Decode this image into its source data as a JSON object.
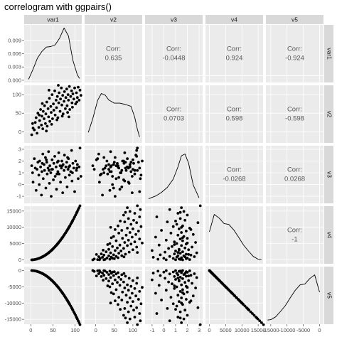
{
  "title": "correlogram with ggpairs()",
  "colors": {
    "panel_bg": "#ebebeb",
    "grid": "#ffffff",
    "strip_bg": "#d9d9d9",
    "ink": "#000000",
    "corr_text": "#595959"
  },
  "chart_data": {
    "type": "scatter-matrix",
    "variables": [
      "var1",
      "v2",
      "v3",
      "v4",
      "v5"
    ],
    "ranges": {
      "var1": [
        -15,
        115
      ],
      "v2": [
        -30,
        125
      ],
      "v3": [
        -1.6,
        3.3
      ],
      "v4": [
        -1200,
        16500
      ],
      "v5": [
        -16500,
        1200
      ]
    },
    "x_ticks": {
      "var1": [
        0,
        50,
        100
      ],
      "v2": [
        0,
        50,
        100
      ],
      "v3": [
        -1,
        0,
        1,
        2,
        3
      ],
      "v4": [
        0,
        5000,
        10000,
        15000
      ],
      "v5": [
        -15000,
        -10000,
        -5000,
        0
      ]
    },
    "x_tick_labels": {
      "var1": [
        "0",
        "50",
        "100"
      ],
      "v2": [
        "0",
        "50",
        "100"
      ],
      "v3": [
        "-1",
        "0",
        "1",
        "2",
        "3"
      ],
      "v4": [
        "0",
        "5000",
        "10000",
        "15000"
      ],
      "v5": [
        "-15000",
        "-10000",
        "-5000",
        "0"
      ]
    },
    "y_ticks": {
      "var1": [
        0.0,
        0.003,
        0.006,
        0.009
      ],
      "v2": [
        0,
        50,
        100
      ],
      "v3": [
        -1,
        0,
        1,
        2,
        3
      ],
      "v4": [
        0,
        5000,
        10000,
        15000
      ],
      "v5": [
        -15000,
        -10000,
        -5000,
        0
      ]
    },
    "y_tick_labels": {
      "var1": [
        "0.000",
        "0.003",
        "0.006",
        "0.009"
      ],
      "v2": [
        "0",
        "50",
        "100"
      ],
      "v3": [
        "-1",
        "0",
        "1",
        "2",
        "3"
      ],
      "v4": [
        "0",
        "5000",
        "10000",
        "15000"
      ],
      "v5": [
        "-15000",
        "-10000",
        "-5000",
        "0"
      ]
    },
    "correlations": [
      {
        "row": "var1",
        "col": "v2",
        "label": "Corr:",
        "value": "0.635"
      },
      {
        "row": "var1",
        "col": "v3",
        "label": "Corr:",
        "value": "-0.0448"
      },
      {
        "row": "var1",
        "col": "v4",
        "label": "Corr:",
        "value": "0.924"
      },
      {
        "row": "var1",
        "col": "v5",
        "label": "Corr:",
        "value": "-0.924"
      },
      {
        "row": "v2",
        "col": "v3",
        "label": "Corr:",
        "value": "0.0703"
      },
      {
        "row": "v2",
        "col": "v4",
        "label": "Corr:",
        "value": "0.598"
      },
      {
        "row": "v2",
        "col": "v5",
        "label": "Corr:",
        "value": "-0.598"
      },
      {
        "row": "v3",
        "col": "v4",
        "label": "Corr:",
        "value": "-0.0268"
      },
      {
        "row": "v3",
        "col": "v5",
        "label": "Corr:",
        "value": "0.0268"
      },
      {
        "row": "v4",
        "col": "v5",
        "label": "Corr:",
        "value": "-1"
      }
    ],
    "densities": {
      "var1": {
        "x": [
          -5,
          5,
          15,
          25,
          35,
          45,
          55,
          65,
          75,
          85,
          95,
          105,
          110
        ],
        "y": [
          0.0002,
          0.0025,
          0.005,
          0.0065,
          0.0075,
          0.0076,
          0.008,
          0.0095,
          0.0118,
          0.01,
          0.0045,
          0.0012,
          0.0004
        ]
      },
      "v2": {
        "x": [
          -20,
          -8,
          5,
          15,
          25,
          35,
          50,
          65,
          80,
          95,
          105,
          112,
          118
        ],
        "y": [
          0.15,
          0.45,
          0.85,
          1.0,
          0.97,
          0.86,
          0.79,
          0.79,
          0.76,
          0.72,
          0.48,
          0.22,
          0.05
        ]
      },
      "v3": {
        "x": [
          -1.3,
          -0.7,
          -0.2,
          0.3,
          0.8,
          1.2,
          1.5,
          1.8,
          2.1,
          2.5,
          3.0
        ],
        "y": [
          0.02,
          0.08,
          0.16,
          0.27,
          0.45,
          0.72,
          0.96,
          1.0,
          0.8,
          0.32,
          0.04
        ]
      },
      "v4": {
        "x": [
          0,
          1500,
          3000,
          4500,
          6000,
          7500,
          9000,
          10500,
          12000,
          13500,
          15000,
          16000
        ],
        "y": [
          0.62,
          1.0,
          0.92,
          0.8,
          0.78,
          0.66,
          0.5,
          0.33,
          0.2,
          0.08,
          0.02,
          0.01
        ]
      },
      "v5": {
        "x": [
          -16000,
          -15000,
          -13500,
          -12000,
          -10500,
          -9000,
          -7500,
          -6000,
          -4500,
          -3000,
          -1500,
          0
        ],
        "y": [
          0.01,
          0.02,
          0.08,
          0.2,
          0.33,
          0.5,
          0.66,
          0.78,
          0.8,
          0.92,
          1.0,
          0.62
        ]
      }
    },
    "observations": [
      {
        "var1": 2,
        "v2": -8,
        "v3": 1.6
      },
      {
        "var1": 5,
        "v2": 10,
        "v3": 0.2
      },
      {
        "var1": 8,
        "v2": 5,
        "v3": 2.2
      },
      {
        "var1": 10,
        "v2": 25,
        "v3": 1.4
      },
      {
        "var1": 12,
        "v2": 38,
        "v3": -0.5
      },
      {
        "var1": 14,
        "v2": -4,
        "v3": 1.3
      },
      {
        "var1": 16,
        "v2": 50,
        "v3": 1.9
      },
      {
        "var1": 18,
        "v2": 12,
        "v3": 0.8
      },
      {
        "var1": 20,
        "v2": 30,
        "v3": 2.0
      },
      {
        "var1": 22,
        "v2": 60,
        "v3": 1.5
      },
      {
        "var1": 24,
        "v2": 18,
        "v3": -0.9
      },
      {
        "var1": 25,
        "v2": 42,
        "v3": 1.1
      },
      {
        "var1": 27,
        "v2": 8,
        "v3": 2.6
      },
      {
        "var1": 28,
        "v2": 55,
        "v3": 0.5
      },
      {
        "var1": 30,
        "v2": 35,
        "v3": 1.7
      },
      {
        "var1": 31,
        "v2": 70,
        "v3": 1.2
      },
      {
        "var1": 33,
        "v2": 22,
        "v3": 2.3
      },
      {
        "var1": 34,
        "v2": 48,
        "v3": -0.3
      },
      {
        "var1": 36,
        "v2": 80,
        "v3": 1.9
      },
      {
        "var1": 37,
        "v2": 15,
        "v3": 0.9
      },
      {
        "var1": 39,
        "v2": 62,
        "v3": 1.4
      },
      {
        "var1": 40,
        "v2": 40,
        "v3": 2.8
      },
      {
        "var1": 42,
        "v2": 90,
        "v3": 0.1
      },
      {
        "var1": 43,
        "v2": 28,
        "v3": 1.6
      },
      {
        "var1": 45,
        "v2": 68,
        "v3": 1.0
      },
      {
        "var1": 46,
        "v2": 52,
        "v3": -1.0
      },
      {
        "var1": 48,
        "v2": 100,
        "v3": 2.1
      },
      {
        "var1": 49,
        "v2": 35,
        "v3": 1.3
      },
      {
        "var1": 51,
        "v2": 75,
        "v3": 0.4
      },
      {
        "var1": 52,
        "v2": 58,
        "v3": 1.8
      },
      {
        "var1": 54,
        "v2": 110,
        "v3": 2.4
      },
      {
        "var1": 55,
        "v2": 45,
        "v3": 0.7
      },
      {
        "var1": 57,
        "v2": 85,
        "v3": 1.5
      },
      {
        "var1": 58,
        "v2": 65,
        "v3": -0.4
      },
      {
        "var1": 60,
        "v2": 95,
        "v3": 1.9
      },
      {
        "var1": 61,
        "v2": 38,
        "v3": 1.1
      },
      {
        "var1": 63,
        "v2": 78,
        "v3": 2.7
      },
      {
        "var1": 64,
        "v2": 105,
        "v3": 0.9
      },
      {
        "var1": 66,
        "v2": 55,
        "v3": 1.6
      },
      {
        "var1": 67,
        "v2": 88,
        "v3": 0.2
      },
      {
        "var1": 69,
        "v2": 118,
        "v3": 1.4
      },
      {
        "var1": 70,
        "v2": 72,
        "v3": 2.0
      },
      {
        "var1": 72,
        "v2": 98,
        "v3": -0.7
      },
      {
        "var1": 73,
        "v2": 48,
        "v3": 1.7
      },
      {
        "var1": 75,
        "v2": 82,
        "v3": 1.2
      },
      {
        "var1": 76,
        "v2": 108,
        "v3": 2.5
      },
      {
        "var1": 78,
        "v2": 62,
        "v3": 0.6
      },
      {
        "var1": 79,
        "v2": 92,
        "v3": 1.5
      },
      {
        "var1": 81,
        "v2": 115,
        "v3": 1.9
      },
      {
        "var1": 82,
        "v2": 70,
        "v3": -0.2
      },
      {
        "var1": 84,
        "v2": 100,
        "v3": 1.3
      },
      {
        "var1": 85,
        "v2": 85,
        "v3": 2.2
      },
      {
        "var1": 87,
        "v2": 122,
        "v3": 0.8
      },
      {
        "var1": 88,
        "v2": 60,
        "v3": 1.6
      },
      {
        "var1": 90,
        "v2": 95,
        "v3": 1.1
      },
      {
        "var1": 92,
        "v2": 110,
        "v3": 2.9
      },
      {
        "var1": 93,
        "v2": 78,
        "v3": 0.3
      },
      {
        "var1": 95,
        "v2": 102,
        "v3": 1.8
      },
      {
        "var1": 97,
        "v2": 88,
        "v3": 1.4
      },
      {
        "var1": 99,
        "v2": 118,
        "v3": -0.6
      },
      {
        "var1": 101,
        "v2": 75,
        "v3": 2.0
      },
      {
        "var1": 103,
        "v2": 105,
        "v3": 1.2
      },
      {
        "var1": 105,
        "v2": 92,
        "v3": 1.7
      },
      {
        "var1": 107,
        "v2": 120,
        "v3": 0.5
      },
      {
        "var1": 109,
        "v2": 85,
        "v3": 1.5
      },
      {
        "var1": 111,
        "v2": 112,
        "v3": 3.1
      },
      {
        "var1": 4,
        "v2": 22,
        "v3": 1.0
      },
      {
        "var1": 19,
        "v2": 45,
        "v3": 0.0
      },
      {
        "var1": 35,
        "v2": 2,
        "v3": 2.1
      },
      {
        "var1": 47,
        "v2": 20,
        "v3": 1.3
      },
      {
        "var1": 59,
        "v2": 32,
        "v3": 0.9
      },
      {
        "var1": 71,
        "v2": 42,
        "v3": 1.6
      },
      {
        "var1": 83,
        "v2": 52,
        "v3": 2.3
      },
      {
        "var1": 94,
        "v2": 66,
        "v3": 1.0
      },
      {
        "var1": 104,
        "v2": 80,
        "v3": 1.4
      },
      {
        "var1": 113,
        "v2": 98,
        "v3": 0.7
      },
      {
        "var1": 26,
        "v2": 76,
        "v3": 1.8
      },
      {
        "var1": 41,
        "v2": 112,
        "v3": 1.2
      },
      {
        "var1": 62,
        "v2": 125,
        "v3": 2.0
      },
      {
        "var1": 86,
        "v2": 40,
        "v3": 1.5
      }
    ]
  }
}
